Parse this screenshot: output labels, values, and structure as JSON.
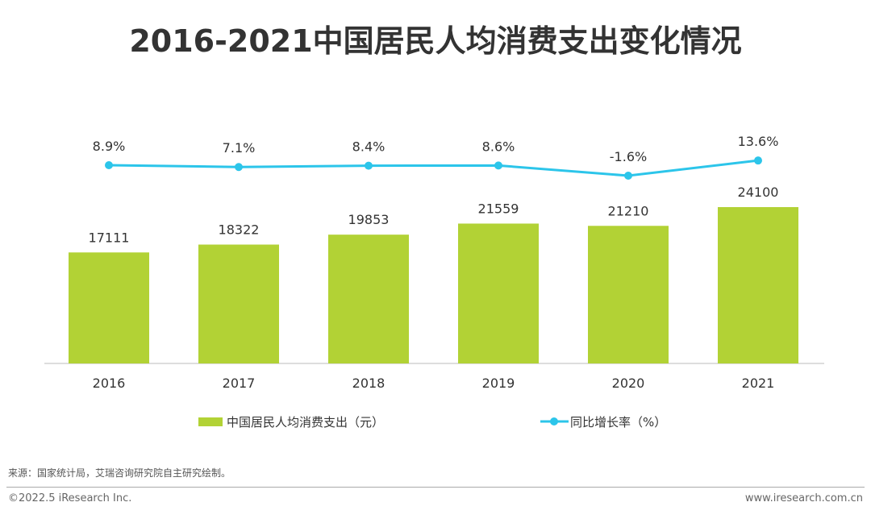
{
  "chart_data": {
    "type": "bar+line",
    "title": "2016-2021中国居民人均消费支出变化情况",
    "categories": [
      "2016",
      "2017",
      "2018",
      "2019",
      "2020",
      "2021"
    ],
    "series": [
      {
        "name": "中国居民人均消费支出（元）",
        "type": "bar",
        "color": "#b2d235",
        "values": [
          17111,
          18322,
          19853,
          21559,
          21210,
          24100
        ],
        "labels": [
          "17111",
          "18322",
          "19853",
          "21559",
          "21210",
          "24100"
        ]
      },
      {
        "name": "同比增长率（%）",
        "type": "line",
        "color": "#2cc5ea",
        "values": [
          8.9,
          7.1,
          8.4,
          8.6,
          -1.6,
          13.6
        ],
        "labels": [
          "8.9%",
          "7.1%",
          "8.4%",
          "8.6%",
          "-1.6%",
          "13.6%"
        ]
      }
    ],
    "legend": "bottom",
    "grid": false
  },
  "footer": {
    "source": "来源：国家统计局，艾瑞咨询研究院自主研究绘制。",
    "copyright": "©2022.5 iResearch Inc.",
    "website": "www.iresearch.com.cn"
  }
}
